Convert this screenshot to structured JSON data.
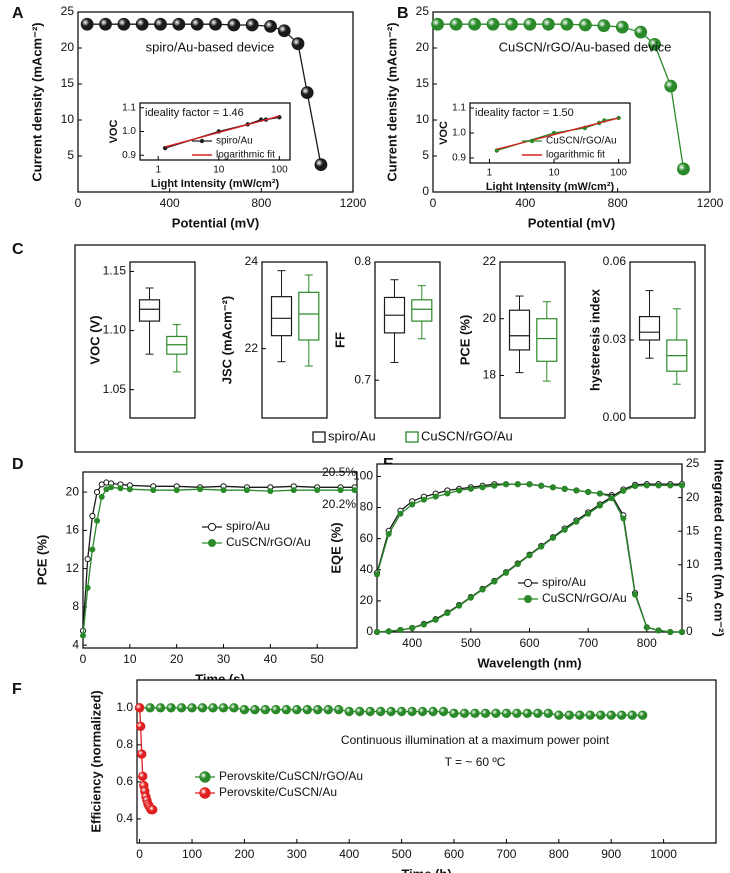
{
  "chart_data": [
    {
      "panel": "A",
      "type": "line",
      "xlabel": "Potential (mV)",
      "ylabel": "Current density (mAcm⁻²)",
      "xlim": [
        0,
        1200
      ],
      "xticks": [
        0,
        400,
        800,
        1200
      ],
      "ylim": [
        0,
        25
      ],
      "yticks": [
        5,
        10,
        15,
        20,
        25
      ],
      "label": "spiro/Au-based device",
      "series": [
        {
          "color": "#1a1a1a",
          "marker": "sphere",
          "x": [
            40,
            120,
            200,
            280,
            360,
            440,
            520,
            600,
            680,
            760,
            840,
            900,
            960,
            1000,
            1060
          ],
          "values": [
            23.3,
            23.3,
            23.3,
            23.3,
            23.3,
            23.3,
            23.3,
            23.3,
            23.2,
            23.2,
            23.0,
            22.4,
            20.6,
            13.8,
            3.8
          ]
        }
      ],
      "inset": {
        "type": "line",
        "annotation": "ideality factor = 1.46",
        "xlabel": "Light Intensity (mW/cm²)",
        "ylabel": "VOC",
        "xlog": true,
        "xlim": [
          0.5,
          150
        ],
        "xticks": [
          1,
          10,
          100
        ],
        "ylim": [
          0.88,
          1.12
        ],
        "yticks": [
          0.9,
          {
            "value": 1,
            "label": "1.0"
          },
          1.1
        ],
        "series": [
          {
            "name": "spiro/Au",
            "color": "#222222",
            "marker": "dot",
            "x": [
              1.3,
              10,
              30,
              50,
              60,
              100
            ],
            "values": [
              0.93,
              1.0,
              1.03,
              1.05,
              1.05,
              1.06
            ]
          },
          {
            "name": "logarithmic fit",
            "color": "#d42020",
            "marker": "none",
            "x": [
              1.3,
              100
            ],
            "values": [
              0.935,
              1.065
            ]
          }
        ]
      }
    },
    {
      "panel": "B",
      "type": "line",
      "xlabel": "Potential (mV)",
      "ylabel": "Current density (mAcm⁻²)",
      "xlim": [
        0,
        1200
      ],
      "xticks": [
        0,
        400,
        800,
        1200
      ],
      "ylim": [
        0,
        25
      ],
      "yticks": [
        0,
        5,
        10,
        15,
        20,
        25
      ],
      "label": "CuSCN/rGO/Au-based device",
      "series": [
        {
          "color": "#2a8a2a",
          "marker": "sphere",
          "x": [
            20,
            100,
            180,
            260,
            340,
            420,
            500,
            580,
            660,
            740,
            820,
            900,
            960,
            1030,
            1085
          ],
          "values": [
            23.3,
            23.3,
            23.3,
            23.3,
            23.3,
            23.3,
            23.3,
            23.3,
            23.2,
            23.1,
            22.9,
            22.2,
            20.5,
            14.7,
            3.2
          ]
        }
      ],
      "inset": {
        "type": "line",
        "annotation": "ideality factor = 1.50",
        "xlabel": "Light Intensity (mW/cm²)",
        "ylabel": "VOC",
        "xlog": true,
        "xlim": [
          0.5,
          150
        ],
        "xticks": [
          1,
          10,
          100
        ],
        "ylim": [
          0.88,
          1.12
        ],
        "yticks": [
          0.9,
          {
            "value": 1,
            "label": "1.0"
          },
          1.1
        ],
        "series": [
          {
            "name": "CuSCN/rGO/Au",
            "color": "#2a8a2a",
            "marker": "dot",
            "x": [
              1.3,
              10,
              30,
              50,
              60,
              100
            ],
            "values": [
              0.93,
              1.0,
              1.02,
              1.04,
              1.05,
              1.06
            ]
          },
          {
            "name": "logarithmic fit",
            "color": "#d42020",
            "marker": "none",
            "x": [
              1.3,
              100
            ],
            "values": [
              0.935,
              1.06
            ]
          }
        ]
      }
    },
    {
      "panel": "C",
      "type": "box",
      "groups": [
        {
          "name": "spiro/Au",
          "color": "#1a1a1a"
        },
        {
          "name": "CuSCN/rGO/Au",
          "color": "#2a8a2a"
        }
      ],
      "subplots": [
        {
          "ylabel": "VOC (V)",
          "ylim": [
            1.026,
            1.158
          ],
          "yticks": [
            1.05,
            {
              "value": 1.1,
              "label": "1.10"
            },
            1.15
          ],
          "boxes": [
            {
              "min": 1.08,
              "q1": 1.108,
              "median": 1.118,
              "q3": 1.126,
              "max": 1.136
            },
            {
              "min": 1.065,
              "q1": 1.08,
              "median": 1.088,
              "q3": 1.095,
              "max": 1.105
            }
          ]
        },
        {
          "ylabel": "JSC (mAcm⁻²)",
          "ylim": [
            20.4,
            24
          ],
          "yticks": [
            22,
            24
          ],
          "boxes": [
            {
              "min": 21.7,
              "q1": 22.3,
              "median": 22.7,
              "q3": 23.2,
              "max": 23.8
            },
            {
              "min": 21.6,
              "q1": 22.2,
              "median": 22.8,
              "q3": 23.3,
              "max": 23.7
            }
          ]
        },
        {
          "ylabel": "FF",
          "ylim": [
            0.668,
            0.8
          ],
          "yticks": [
            0.7,
            0.8
          ],
          "boxes": [
            {
              "min": 0.715,
              "q1": 0.74,
              "median": 0.755,
              "q3": 0.77,
              "max": 0.785
            },
            {
              "min": 0.735,
              "q1": 0.75,
              "median": 0.76,
              "q3": 0.768,
              "max": 0.78
            }
          ]
        },
        {
          "ylabel": "PCE (%)",
          "ylim": [
            16.5,
            22
          ],
          "yticks": [
            18,
            20,
            22
          ],
          "boxes": [
            {
              "min": 18.1,
              "q1": 18.9,
              "median": 19.4,
              "q3": 20.3,
              "max": 20.8
            },
            {
              "min": 17.8,
              "q1": 18.5,
              "median": 19.3,
              "q3": 20.0,
              "max": 20.6
            }
          ]
        },
        {
          "ylabel": "hysteresis index",
          "ylim": [
            0,
            0.06
          ],
          "yticks": [
            {
              "value": 0,
              "label": "0.00"
            },
            0.03,
            0.06
          ],
          "boxes": [
            {
              "min": 0.023,
              "q1": 0.03,
              "median": 0.033,
              "q3": 0.039,
              "max": 0.049
            },
            {
              "min": 0.013,
              "q1": 0.018,
              "median": 0.024,
              "q3": 0.03,
              "max": 0.042
            }
          ]
        }
      ]
    },
    {
      "panel": "D",
      "type": "line",
      "xlabel": "Time (s)",
      "ylabel": "PCE (%)",
      "xlim": [
        0,
        58.5
      ],
      "xticks": [
        0,
        10,
        20,
        30,
        40,
        50
      ],
      "ylim": [
        3.7,
        22.1
      ],
      "yticks": [
        4,
        8,
        12,
        16,
        20
      ],
      "x": [
        0,
        1,
        2,
        3,
        4,
        5,
        6,
        8,
        10,
        15,
        20,
        25,
        30,
        35,
        40,
        45,
        50,
        55,
        58
      ],
      "series": [
        {
          "name": "spiro/Au",
          "color": "#1a1a1a",
          "marker": "open",
          "values": [
            5.5,
            13,
            17.5,
            20,
            20.8,
            21,
            20.9,
            20.8,
            20.7,
            20.6,
            20.6,
            20.5,
            20.6,
            20.5,
            20.5,
            20.6,
            20.5,
            20.5,
            20.5
          ]
        },
        {
          "name": "CuSCN/rGO/Au",
          "color": "#2a8a2a",
          "marker": "circle",
          "values": [
            5,
            10,
            14,
            17,
            19.5,
            20.3,
            20.5,
            20.4,
            20.3,
            20.2,
            20.2,
            20.3,
            20.2,
            20.2,
            20.1,
            20.2,
            20.2,
            20.2,
            20.2
          ]
        }
      ],
      "annotations": [
        "20.5%",
        "20.2%"
      ]
    },
    {
      "panel": "E",
      "type": "line",
      "xlabel": "Wavelength (nm)",
      "ylabel": "EQE (%)",
      "y2label": "Integrated current (mA cm⁻²)",
      "xlim": [
        340,
        860
      ],
      "xticks": [
        400,
        500,
        600,
        700,
        800
      ],
      "ylim": [
        0,
        108
      ],
      "yticks": [
        0,
        20,
        40,
        60,
        80,
        100
      ],
      "y2lim": [
        0,
        25
      ],
      "y2ticks": [
        0,
        5,
        10,
        15,
        20,
        25
      ],
      "x": [
        340,
        360,
        380,
        400,
        420,
        440,
        460,
        480,
        500,
        520,
        540,
        560,
        580,
        600,
        620,
        640,
        660,
        680,
        700,
        720,
        740,
        760,
        780,
        800,
        820,
        840,
        860
      ],
      "series": [
        {
          "name": "spiro/Au",
          "color": "#1a1a1a",
          "marker": "open",
          "values": [
            38,
            65,
            78,
            84,
            87,
            89,
            91,
            92,
            93,
            94,
            95,
            95,
            95,
            95,
            94,
            93,
            92,
            91,
            90,
            89,
            88,
            75,
            25,
            3,
            1,
            0,
            0
          ]
        },
        {
          "name": "CuSCN/rGO/Au",
          "color": "#2a8a2a",
          "marker": "circle",
          "values": [
            37,
            63,
            76,
            82,
            85,
            87,
            89,
            91,
            92,
            93,
            94,
            95,
            95,
            95,
            94,
            93,
            92,
            91,
            90,
            89,
            87,
            73,
            24,
            3,
            1,
            0,
            0
          ]
        },
        {
          "color": "#1a1a1a",
          "marker": "open",
          "axis": "y2",
          "values": [
            0,
            0.1,
            0.3,
            0.6,
            1.2,
            1.9,
            2.9,
            4,
            5.2,
            6.4,
            7.6,
            8.9,
            10.2,
            11.5,
            12.8,
            14.1,
            15.4,
            16.6,
            17.8,
            19,
            20.1,
            21.2,
            21.9,
            22,
            22,
            22,
            22
          ]
        },
        {
          "color": "#2a8a2a",
          "marker": "circle",
          "axis": "y2",
          "values": [
            0,
            0.1,
            0.3,
            0.6,
            1.1,
            1.8,
            2.8,
            3.9,
            5.1,
            6.3,
            7.5,
            8.8,
            10.1,
            11.4,
            12.7,
            14,
            15.2,
            16.4,
            17.6,
            18.8,
            19.9,
            21,
            21.7,
            21.8,
            21.8,
            21.8,
            21.8
          ]
        }
      ]
    },
    {
      "panel": "F",
      "type": "line",
      "xlabel": "Time (h)",
      "ylabel": "Efficiency (normalized)",
      "xlim": [
        -5,
        1100
      ],
      "xticks": [
        0,
        100,
        200,
        300,
        400,
        500,
        600,
        700,
        800,
        900,
        1000
      ],
      "ylim": [
        0.27,
        1.15
      ],
      "yticks": [
        0.4,
        0.6,
        0.8,
        {
          "value": 1,
          "label": "1.0"
        }
      ],
      "series": [
        {
          "name": "Perovskite/CuSCN/rGO/Au",
          "color": "#2a8a2a",
          "marker": "sphere",
          "x": [
            0,
            20,
            40,
            60,
            80,
            100,
            120,
            140,
            160,
            180,
            200,
            220,
            240,
            260,
            280,
            300,
            320,
            340,
            360,
            380,
            400,
            420,
            440,
            460,
            480,
            500,
            520,
            540,
            560,
            580,
            600,
            620,
            640,
            660,
            680,
            700,
            720,
            740,
            760,
            780,
            800,
            820,
            840,
            860,
            880,
            900,
            920,
            940,
            960
          ],
          "values": [
            1.0,
            1.0,
            1.0,
            1.0,
            1.0,
            1.0,
            1.0,
            1.0,
            1.0,
            1.0,
            0.99,
            0.99,
            0.99,
            0.99,
            0.99,
            0.99,
            0.99,
            0.99,
            0.99,
            0.99,
            0.98,
            0.98,
            0.98,
            0.98,
            0.98,
            0.98,
            0.98,
            0.98,
            0.98,
            0.98,
            0.97,
            0.97,
            0.97,
            0.97,
            0.97,
            0.97,
            0.97,
            0.97,
            0.97,
            0.97,
            0.96,
            0.96,
            0.96,
            0.96,
            0.96,
            0.96,
            0.96,
            0.96,
            0.96
          ]
        },
        {
          "name": "Perovskite/CuSCN/Au",
          "color": "#e02020",
          "marker": "sphere",
          "x": [
            0,
            2,
            4,
            6,
            8,
            10,
            12,
            14,
            16,
            18,
            20,
            22,
            25
          ],
          "values": [
            1.0,
            0.9,
            0.75,
            0.63,
            0.58,
            0.55,
            0.52,
            0.5,
            0.48,
            0.47,
            0.46,
            0.45,
            0.45
          ]
        }
      ],
      "annotations": [
        "Continuous illumination at a maximum power point",
        "T = ~ 60 ºC"
      ]
    }
  ]
}
